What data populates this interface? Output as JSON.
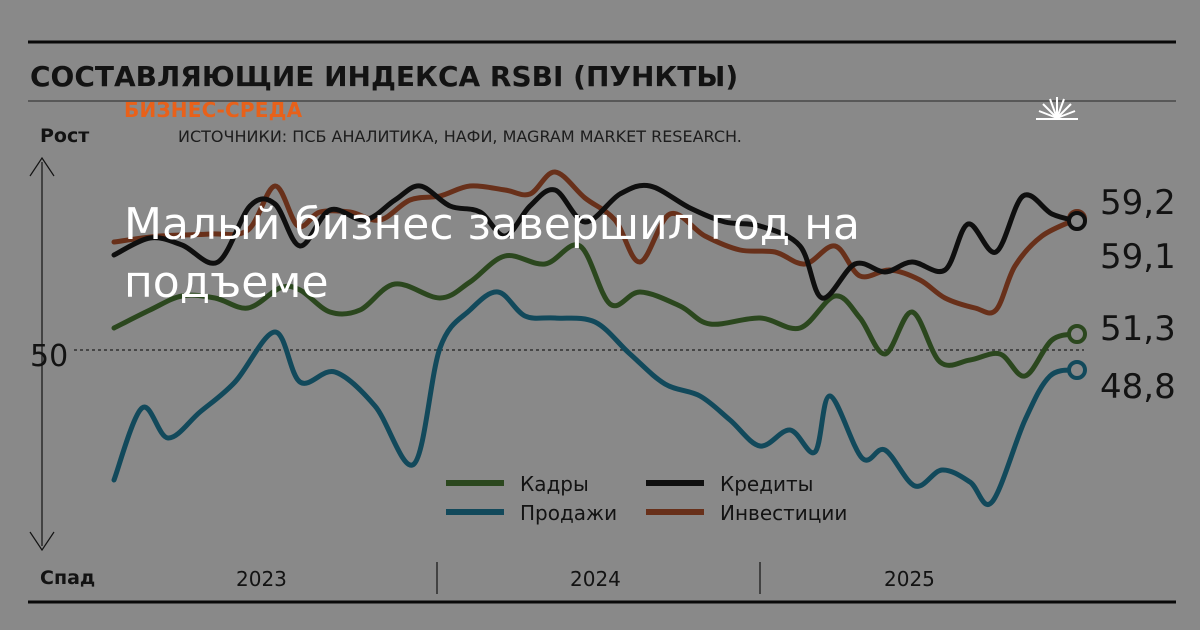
{
  "chart_data": {
    "type": "line",
    "title": "СОСТАВЛЯЮЩИЕ ИНДЕКСА RSBI (ПУНКТЫ)",
    "source": "ИСТОЧНИКИ: ПСБ АНАЛИТИКА, НАФИ, MAGRAM MARKET RESEARCH.",
    "y_top_label": "Рост",
    "y_bottom_label": "Спад",
    "reference_line": {
      "value": 50,
      "label": "50"
    },
    "period_labels": [
      "2023",
      "2024",
      "2025"
    ],
    "legend": [
      {
        "key": "kadry",
        "label": "Кадры"
      },
      {
        "key": "kredity",
        "label": "Кредиты"
      },
      {
        "key": "prodazhi",
        "label": "Продажи"
      },
      {
        "key": "investicii",
        "label": "Инвестиции"
      }
    ],
    "end_labels": [
      "59,2",
      "59,1",
      "51,3",
      "48,8"
    ],
    "grid": false,
    "legend_placement": "bottom-center",
    "series": [
      {
        "key": "kredity",
        "color": "#1a1a1a",
        "end_value": 59.2
      },
      {
        "key": "investicii",
        "color": "#b4532e",
        "end_value": 59.1
      },
      {
        "key": "kadry",
        "color": "#4a7a34",
        "end_value": 51.3
      },
      {
        "key": "prodazhi",
        "color": "#1f7f9e",
        "end_value": 48.8
      }
    ]
  },
  "overlay": {
    "brand": "БИЗНЕС-СРЕДА",
    "headline": "Малый бизнес завершил год на подъеме",
    "brand_color": "#e8611a"
  }
}
